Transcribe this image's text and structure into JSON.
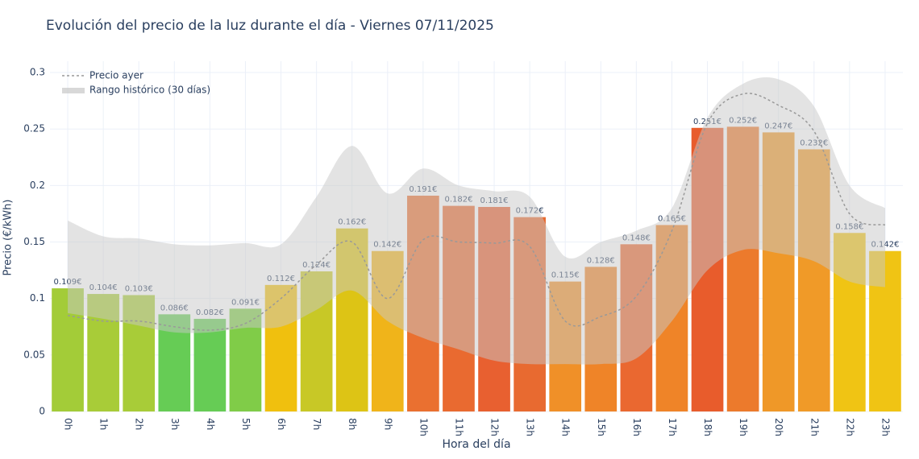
{
  "chart_data": {
    "type": "bar",
    "title": "Evolución del precio de la luz durante el día - Viernes 07/11/2025",
    "x_label": "Hora del día",
    "y_label": "Precio (€/kWh)",
    "categories": [
      "0h",
      "1h",
      "2h",
      "3h",
      "4h",
      "5h",
      "6h",
      "7h",
      "8h",
      "9h",
      "10h",
      "11h",
      "12h",
      "13h",
      "14h",
      "15h",
      "16h",
      "17h",
      "18h",
      "19h",
      "20h",
      "21h",
      "22h",
      "23h"
    ],
    "values": [
      0.109,
      0.104,
      0.103,
      0.086,
      0.082,
      0.091,
      0.112,
      0.124,
      0.162,
      0.142,
      0.191,
      0.182,
      0.181,
      0.172,
      0.115,
      0.128,
      0.148,
      0.165,
      0.251,
      0.252,
      0.247,
      0.232,
      0.158,
      0.142
    ],
    "value_labels": [
      "0.109€",
      "0.104€",
      "0.103€",
      "0.086€",
      "0.082€",
      "0.091€",
      "0.112€",
      "0.124€",
      "0.162€",
      "0.142€",
      "0.191€",
      "0.182€",
      "0.181€",
      "0.172€",
      "0.115€",
      "0.128€",
      "0.148€",
      "0.165€",
      "0.251€",
      "0.252€",
      "0.247€",
      "0.232€",
      "0.158€",
      "0.142€"
    ],
    "colors": [
      "#a3cc38",
      "#a8cc38",
      "#a8cc38",
      "#66cc55",
      "#66cc55",
      "#80cc48",
      "#f0c00e",
      "#c8c826",
      "#ddc415",
      "#f0b41a",
      "#ea7030",
      "#e96a30",
      "#e86030",
      "#e86a30",
      "#f09028",
      "#ef8428",
      "#ea6830",
      "#ef8428",
      "#e85c2c",
      "#ec7a2c",
      "#ef9828",
      "#f09a28",
      "#f0c414",
      "#f0c414"
    ],
    "yesterday": {
      "name": "Precio ayer",
      "color": "#999999",
      "values": [
        0.085,
        0.08,
        0.08,
        0.075,
        0.072,
        0.078,
        0.1,
        0.13,
        0.15,
        0.1,
        0.152,
        0.15,
        0.149,
        0.146,
        0.08,
        0.084,
        0.102,
        0.16,
        0.255,
        0.281,
        0.271,
        0.248,
        0.175,
        0.165
      ]
    },
    "range": {
      "name": "Rango histórico (30 días)",
      "color": "#c8c8c8",
      "upper": [
        0.169,
        0.155,
        0.153,
        0.148,
        0.147,
        0.149,
        0.148,
        0.19,
        0.235,
        0.193,
        0.215,
        0.2,
        0.195,
        0.19,
        0.137,
        0.15,
        0.16,
        0.18,
        0.26,
        0.29,
        0.294,
        0.27,
        0.2,
        0.18
      ],
      "lower": [
        0.087,
        0.082,
        0.076,
        0.07,
        0.07,
        0.074,
        0.075,
        0.09,
        0.107,
        0.08,
        0.065,
        0.055,
        0.045,
        0.042,
        0.042,
        0.042,
        0.047,
        0.08,
        0.125,
        0.143,
        0.14,
        0.133,
        0.115,
        0.11
      ]
    },
    "ylim": [
      0,
      0.31
    ],
    "yticks": [
      0,
      0.05,
      0.1,
      0.15,
      0.2,
      0.25,
      0.3
    ],
    "grid": true,
    "legend": "top-left"
  }
}
